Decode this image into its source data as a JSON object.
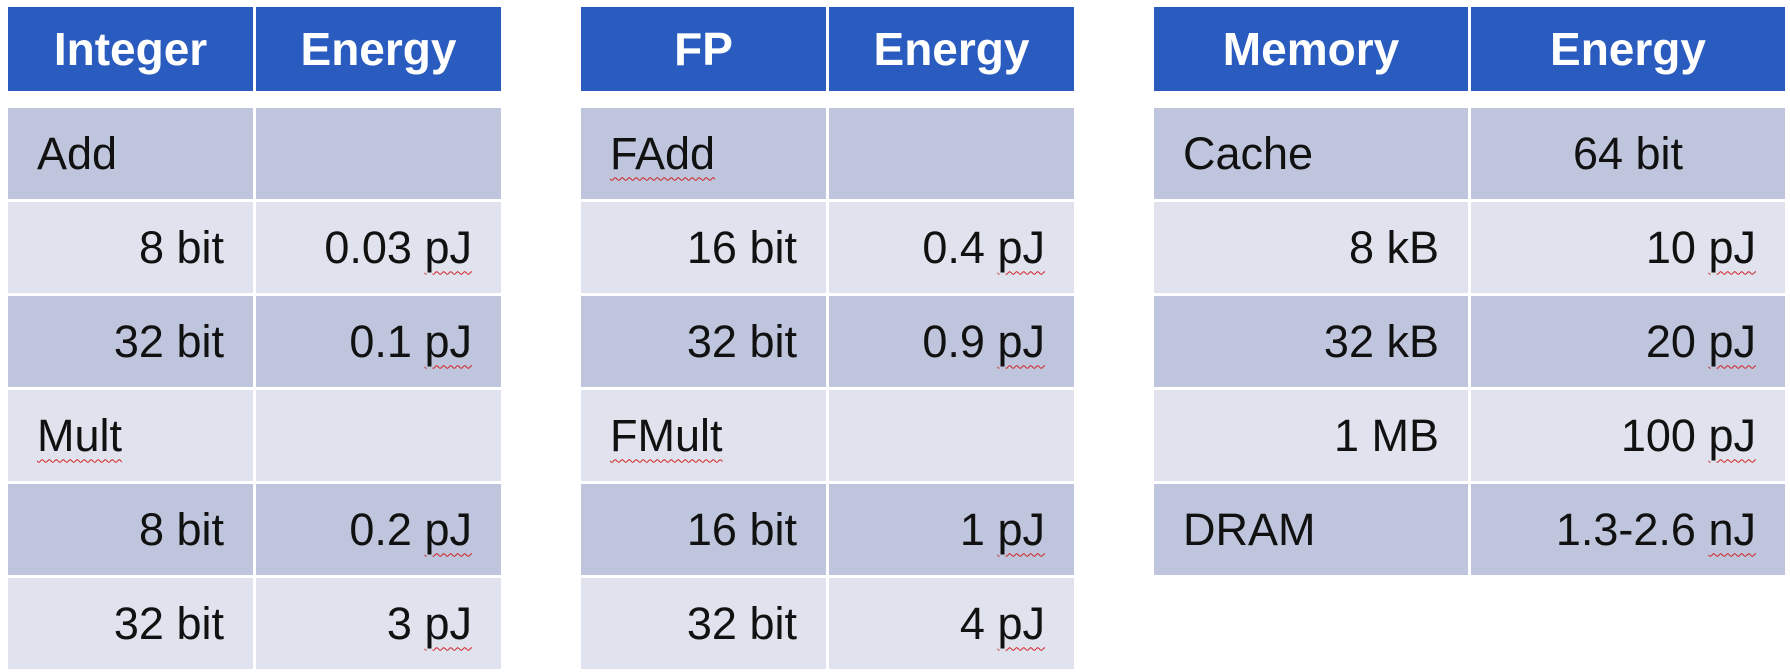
{
  "integer_table": {
    "headers": [
      "Integer",
      "Energy"
    ],
    "rows": [
      {
        "label": "Add",
        "value": "",
        "unit": ""
      },
      {
        "label": "8 bit",
        "value": "0.03",
        "unit": "pJ"
      },
      {
        "label": "32 bit",
        "value": "0.1",
        "unit": "pJ"
      },
      {
        "label": "Mult",
        "value": "",
        "unit": ""
      },
      {
        "label": "8 bit",
        "value": "0.2",
        "unit": "pJ"
      },
      {
        "label": "32 bit",
        "value": "3",
        "unit": "pJ"
      }
    ]
  },
  "fp_table": {
    "headers": [
      "FP",
      "Energy"
    ],
    "rows": [
      {
        "label": "FAdd",
        "value": "",
        "unit": ""
      },
      {
        "label": "16 bit",
        "value": "0.4",
        "unit": "pJ"
      },
      {
        "label": "32 bit",
        "value": "0.9",
        "unit": "pJ"
      },
      {
        "label": "FMult",
        "value": "",
        "unit": ""
      },
      {
        "label": "16 bit",
        "value": "1",
        "unit": "pJ"
      },
      {
        "label": "32 bit",
        "value": "4",
        "unit": "pJ"
      }
    ]
  },
  "memory_table": {
    "headers": [
      "Memory",
      "Energy"
    ],
    "rows": [
      {
        "label": "Cache",
        "value": "64 bit",
        "unit": ""
      },
      {
        "label": "8 kB",
        "value": "10",
        "unit": "pJ"
      },
      {
        "label": "32 kB",
        "value": "20",
        "unit": "pJ"
      },
      {
        "label": "1 MB",
        "value": "100",
        "unit": "pJ"
      },
      {
        "label": "DRAM",
        "value": "1.3-2.6",
        "unit": "nJ"
      }
    ]
  },
  "colors": {
    "header_bg": "#2a5cbf",
    "row_dark": "#bfc5dc",
    "row_light": "#e0e3ee",
    "spellcheck_underline": "#d02020"
  }
}
